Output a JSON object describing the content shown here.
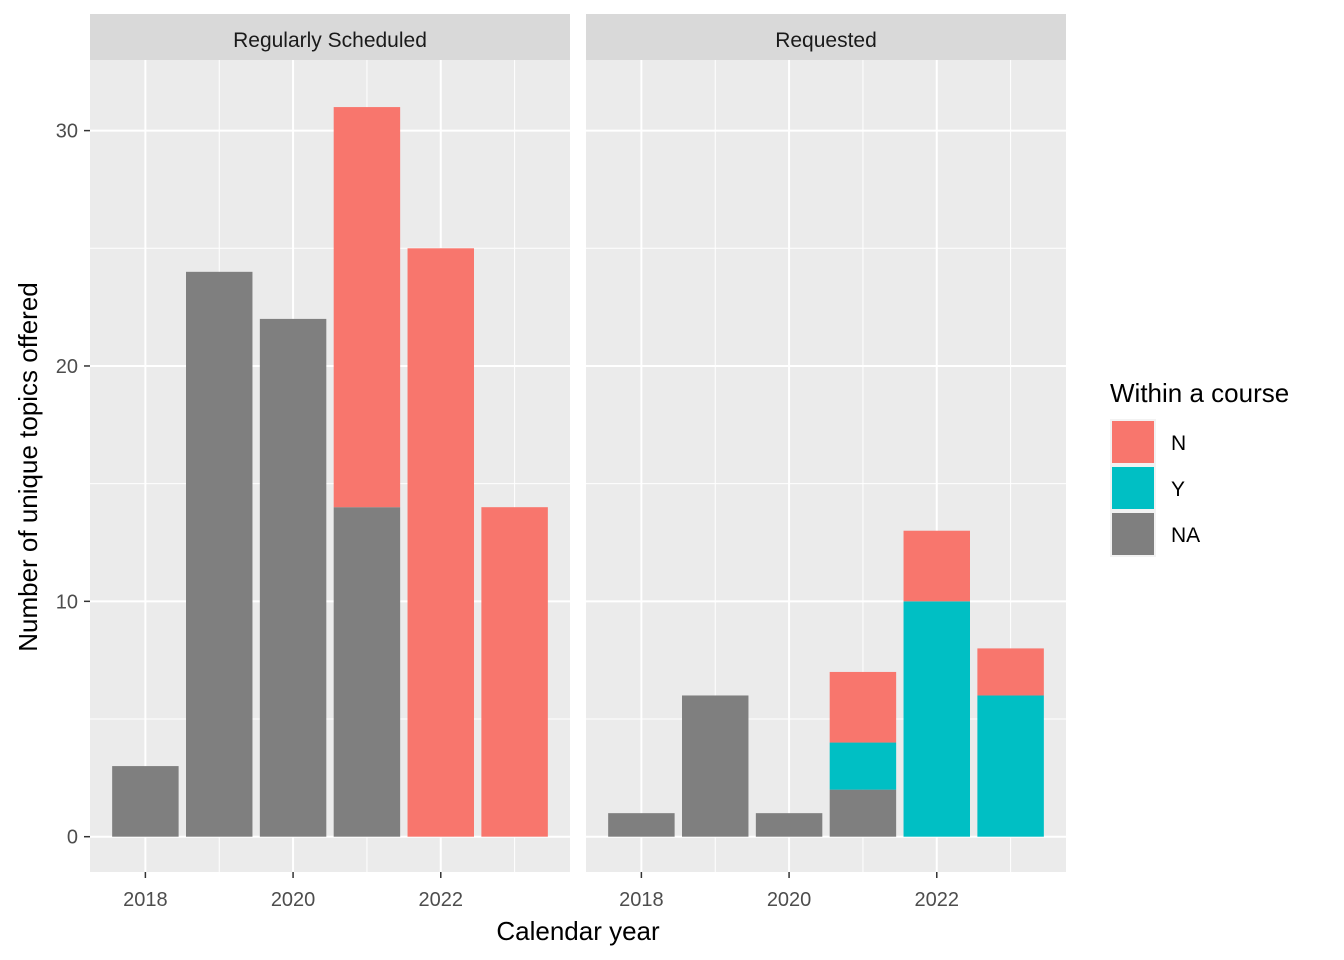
{
  "chart_data": {
    "type": "bar",
    "stacked": true,
    "xlabel": "Calendar year",
    "ylabel": "Number of unique topics offered",
    "ylim": [
      -1.5,
      33
    ],
    "yticks": [
      0,
      10,
      20,
      30
    ],
    "xlim": [
      2017.25,
      2023.75
    ],
    "xticks": [
      2018,
      2020,
      2022
    ],
    "grid": true,
    "legend": {
      "title": "Within a course",
      "placement": "right",
      "entries": [
        {
          "key": "N",
          "label": "N",
          "color": "#F8766D"
        },
        {
          "key": "Y",
          "label": "Y",
          "color": "#00BFC4"
        },
        {
          "key": "NA",
          "label": "NA",
          "color": "#7F7F7F"
        }
      ]
    },
    "categories": [
      2018,
      2019,
      2020,
      2021,
      2022,
      2023
    ],
    "panels": [
      {
        "title": "Regularly Scheduled",
        "series": [
          {
            "name": "NA",
            "values": [
              3,
              24,
              22,
              14,
              0,
              0
            ]
          },
          {
            "name": "Y",
            "values": [
              0,
              0,
              0,
              0,
              0,
              0
            ]
          },
          {
            "name": "N",
            "values": [
              0,
              0,
              0,
              17,
              25,
              14
            ]
          }
        ]
      },
      {
        "title": "Requested",
        "series": [
          {
            "name": "NA",
            "values": [
              1,
              6,
              1,
              2,
              0,
              0
            ]
          },
          {
            "name": "Y",
            "values": [
              0,
              0,
              0,
              2,
              10,
              6
            ]
          },
          {
            "name": "N",
            "values": [
              0,
              0,
              0,
              3,
              3,
              2
            ]
          }
        ]
      }
    ]
  }
}
